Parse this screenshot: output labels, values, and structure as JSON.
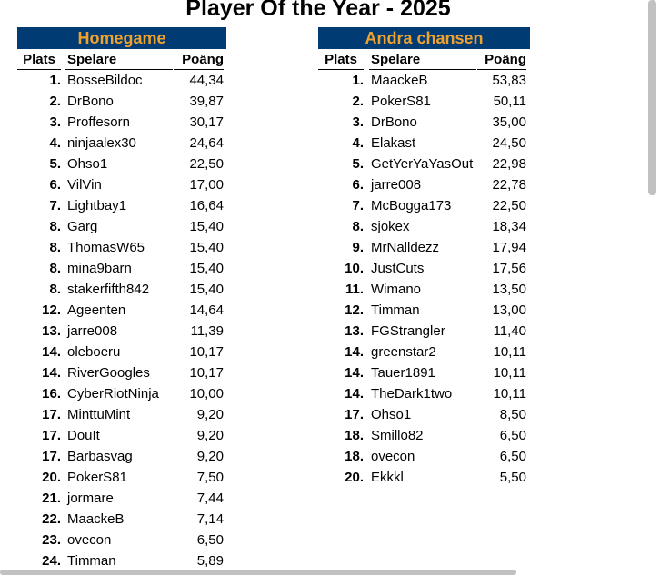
{
  "title": "Player Of the Year - 2025",
  "tables": [
    {
      "title": "Homegame",
      "headers": [
        "Plats",
        "Spelare",
        "Poäng"
      ],
      "rows": [
        [
          "1.",
          "BosseBildoc",
          "44,34"
        ],
        [
          "2.",
          "DrBono",
          "39,87"
        ],
        [
          "3.",
          "Proffesorn",
          "30,17"
        ],
        [
          "4.",
          "ninjaalex30",
          "24,64"
        ],
        [
          "5.",
          "Ohso1",
          "22,50"
        ],
        [
          "6.",
          "VilVin",
          "17,00"
        ],
        [
          "7.",
          "Lightbay1",
          "16,64"
        ],
        [
          "8.",
          "Garg",
          "15,40"
        ],
        [
          "8.",
          "ThomasW65",
          "15,40"
        ],
        [
          "8.",
          "mina9barn",
          "15,40"
        ],
        [
          "8.",
          "stakerfifth842",
          "15,40"
        ],
        [
          "12.",
          "Ageenten",
          "14,64"
        ],
        [
          "13.",
          "jarre008",
          "11,39"
        ],
        [
          "14.",
          "oleboeru",
          "10,17"
        ],
        [
          "14.",
          "RiverGoogles",
          "10,17"
        ],
        [
          "16.",
          "CyberRiotNinja",
          "10,00"
        ],
        [
          "17.",
          "MinttuMint",
          "9,20"
        ],
        [
          "17.",
          "DouIt",
          "9,20"
        ],
        [
          "17.",
          "Barbasvag",
          "9,20"
        ],
        [
          "20.",
          "PokerS81",
          "7,50"
        ],
        [
          "21.",
          "jormare",
          "7,44"
        ],
        [
          "22.",
          "MaackeB",
          "7,14"
        ],
        [
          "23.",
          "ovecon",
          "6,50"
        ],
        [
          "24.",
          "Timman",
          "5,89"
        ]
      ]
    },
    {
      "title": "Andra chansen",
      "headers": [
        "Plats",
        "Spelare",
        "Poäng"
      ],
      "rows": [
        [
          "1.",
          "MaackeB",
          "53,83"
        ],
        [
          "2.",
          "PokerS81",
          "50,11"
        ],
        [
          "3.",
          "DrBono",
          "35,00"
        ],
        [
          "4.",
          "Elakast",
          "24,50"
        ],
        [
          "5.",
          "GetYerYaYasOut",
          "22,98"
        ],
        [
          "6.",
          "jarre008",
          "22,78"
        ],
        [
          "7.",
          "McBogga173",
          "22,50"
        ],
        [
          "8.",
          "sjokex",
          "18,34"
        ],
        [
          "9.",
          "MrNalldezz",
          "17,94"
        ],
        [
          "10.",
          "JustCuts",
          "17,56"
        ],
        [
          "11.",
          "Wimano",
          "13,50"
        ],
        [
          "12.",
          "Timman",
          "13,00"
        ],
        [
          "13.",
          "FGStrangler",
          "11,40"
        ],
        [
          "14.",
          "greenstar2",
          "10,11"
        ],
        [
          "14.",
          "Tauer1891",
          "10,11"
        ],
        [
          "14.",
          "TheDark1two",
          "10,11"
        ],
        [
          "17.",
          "Ohso1",
          "8,50"
        ],
        [
          "18.",
          "Smillo82",
          "6,50"
        ],
        [
          "18.",
          "ovecon",
          "6,50"
        ],
        [
          "20.",
          "Ekkkl",
          "5,50"
        ]
      ]
    }
  ]
}
